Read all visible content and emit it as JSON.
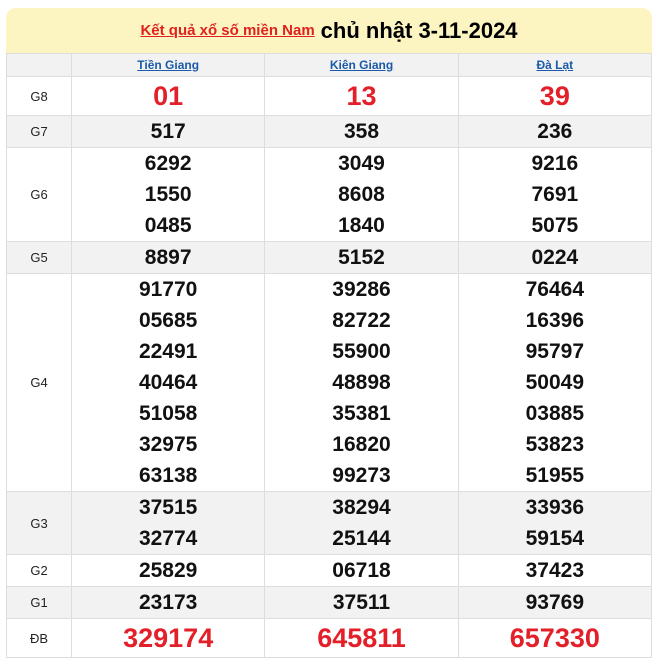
{
  "header": {
    "link": "Kết quả xổ số miền Nam",
    "date": "chủ nhật 3-11-2024"
  },
  "provinces": [
    "Tiền Giang",
    "Kiên Giang",
    "Đà Lạt"
  ],
  "prizes": [
    {
      "label": "G8",
      "red": true,
      "values": [
        [
          "01"
        ],
        [
          "13"
        ],
        [
          "39"
        ]
      ]
    },
    {
      "label": "G7",
      "values": [
        [
          "517"
        ],
        [
          "358"
        ],
        [
          "236"
        ]
      ]
    },
    {
      "label": "G6",
      "values": [
        [
          "6292",
          "1550",
          "0485"
        ],
        [
          "3049",
          "8608",
          "1840"
        ],
        [
          "9216",
          "7691",
          "5075"
        ]
      ]
    },
    {
      "label": "G5",
      "values": [
        [
          "8897"
        ],
        [
          "5152"
        ],
        [
          "0224"
        ]
      ]
    },
    {
      "label": "G4",
      "values": [
        [
          "91770",
          "05685",
          "22491",
          "40464",
          "51058",
          "32975",
          "63138"
        ],
        [
          "39286",
          "82722",
          "55900",
          "48898",
          "35381",
          "16820",
          "99273"
        ],
        [
          "76464",
          "16396",
          "95797",
          "50049",
          "03885",
          "53823",
          "51955"
        ]
      ]
    },
    {
      "label": "G3",
      "values": [
        [
          "37515",
          "32774"
        ],
        [
          "38294",
          "25144"
        ],
        [
          "33936",
          "59154"
        ]
      ]
    },
    {
      "label": "G2",
      "values": [
        [
          "25829"
        ],
        [
          "06718"
        ],
        [
          "37423"
        ]
      ]
    },
    {
      "label": "G1",
      "values": [
        [
          "23173"
        ],
        [
          "37511"
        ],
        [
          "93769"
        ]
      ]
    },
    {
      "label": "ĐB",
      "red": true,
      "values": [
        [
          "329174"
        ],
        [
          "645811"
        ],
        [
          "657330"
        ]
      ]
    }
  ]
}
